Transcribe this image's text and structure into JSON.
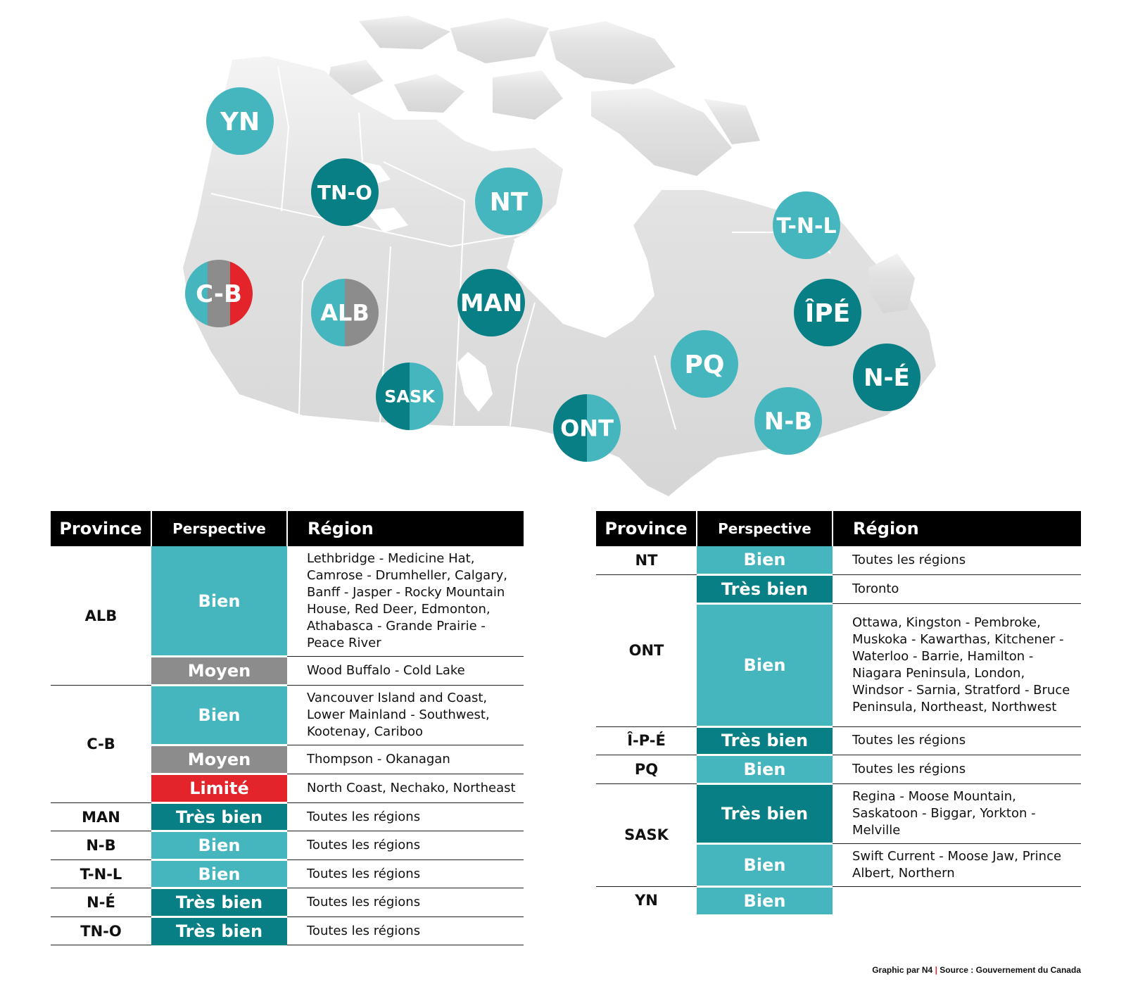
{
  "colors": {
    "bien": "#45b6be",
    "tres_bien": "#087f84",
    "moyen": "#8c8c8c",
    "limite": "#e3242b",
    "land": "#dedede",
    "borders": "#ffffff"
  },
  "map": {
    "badges": [
      {
        "label": "YN",
        "status": [
          "bien"
        ]
      },
      {
        "label": "TN-O",
        "status": [
          "tres_bien"
        ]
      },
      {
        "label": "NT",
        "status": [
          "bien"
        ]
      },
      {
        "label": "T-N-L",
        "status": [
          "bien"
        ]
      },
      {
        "label": "C-B",
        "status": [
          "bien",
          "moyen",
          "limite"
        ]
      },
      {
        "label": "ALB",
        "status": [
          "bien",
          "moyen"
        ]
      },
      {
        "label": "MAN",
        "status": [
          "tres_bien"
        ]
      },
      {
        "label": "ÎPÉ",
        "status": [
          "tres_bien"
        ]
      },
      {
        "label": "SASK",
        "status": [
          "tres_bien",
          "bien"
        ]
      },
      {
        "label": "PQ",
        "status": [
          "bien"
        ]
      },
      {
        "label": "N-É",
        "status": [
          "tres_bien"
        ]
      },
      {
        "label": "ONT",
        "status": [
          "tres_bien",
          "bien"
        ]
      },
      {
        "label": "N-B",
        "status": [
          "bien"
        ]
      }
    ]
  },
  "tables": {
    "headers": {
      "province": "Province",
      "perspective": "Perspective",
      "region": "Région"
    },
    "left": {
      "rows": [
        {
          "province": "ALB",
          "perspective": "Bien",
          "status": "bien",
          "region": "Lethbridge - Medicine Hat, Camrose - Drumheller, Calgary, Banff - Jasper - Rocky Mountain House, Red Deer, Edmonton, Athabasca - Grande Prairie - Peace River"
        },
        {
          "province": "",
          "perspective": "Moyen",
          "status": "moyen",
          "region": "Wood Buffalo - Cold Lake"
        },
        {
          "province": "C-B",
          "perspective": "Bien",
          "status": "bien",
          "region": "Vancouver Island and Coast, Lower Mainland - Southwest, Kootenay, Cariboo"
        },
        {
          "province": "",
          "perspective": "Moyen",
          "status": "moyen",
          "region": "Thompson - Okanagan"
        },
        {
          "province": "",
          "perspective": "Limité",
          "status": "limite",
          "region": "North Coast, Nechako, Northeast"
        },
        {
          "province": "MAN",
          "perspective": "Très bien",
          "status": "tres_bien",
          "region": "Toutes les régions"
        },
        {
          "province": "N-B",
          "perspective": "Bien",
          "status": "bien",
          "region": "Toutes les régions"
        },
        {
          "province": "T-N-L",
          "perspective": "Bien",
          "status": "bien",
          "region": "Toutes les régions"
        },
        {
          "province": "N-É",
          "perspective": "Très bien",
          "status": "tres_bien",
          "region": "Toutes les régions"
        },
        {
          "province": "TN-O",
          "perspective": "Très bien",
          "status": "tres_bien",
          "region": "Toutes les régions"
        }
      ]
    },
    "right": {
      "rows": [
        {
          "province": "NT",
          "perspective": "Bien",
          "status": "bien",
          "region": "Toutes les régions"
        },
        {
          "province": "ONT",
          "perspective": "Très bien",
          "status": "tres_bien",
          "region": "Toronto"
        },
        {
          "province": "",
          "perspective": "Bien",
          "status": "bien",
          "region": "Ottawa, Kingston - Pembroke, Muskoka - Kawarthas, Kitchener - Waterloo - Barrie, Hamilton - Niagara Peninsula, London, Windsor - Sarnia, Stratford - Bruce Peninsula, Northeast, Northwest"
        },
        {
          "province": "Î-P-É",
          "perspective": "Très bien",
          "status": "tres_bien",
          "region": "Toutes les régions"
        },
        {
          "province": "PQ",
          "perspective": "Bien",
          "status": "bien",
          "region": "Toutes les régions"
        },
        {
          "province": "SASK",
          "perspective": "Très bien",
          "status": "tres_bien",
          "region": "Regina - Moose Mountain, Saskatoon - Biggar, Yorkton - Melville"
        },
        {
          "province": "",
          "perspective": "Bien",
          "status": "bien",
          "region": "Swift Current - Moose Jaw, Prince Albert, Northern"
        },
        {
          "province": "YN",
          "perspective": "Bien",
          "status": "bien",
          "region": ""
        }
      ]
    }
  },
  "footer": {
    "credit": "Graphic par N4",
    "separator": "|",
    "source": "Source : Gouvernement du Canada"
  }
}
